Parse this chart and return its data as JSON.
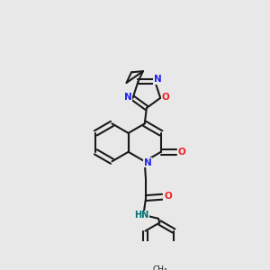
{
  "bg": "#e8e8e8",
  "bc": "#1a1a1a",
  "Nc": "#2222ee",
  "Oc": "#ee2222",
  "Hc": "#007070",
  "lw": 1.5,
  "dbo": 0.013,
  "figsize": [
    3.0,
    3.0
  ],
  "dpi": 100,
  "xlim": [
    0.0,
    1.0
  ],
  "ylim": [
    0.0,
    1.0
  ]
}
